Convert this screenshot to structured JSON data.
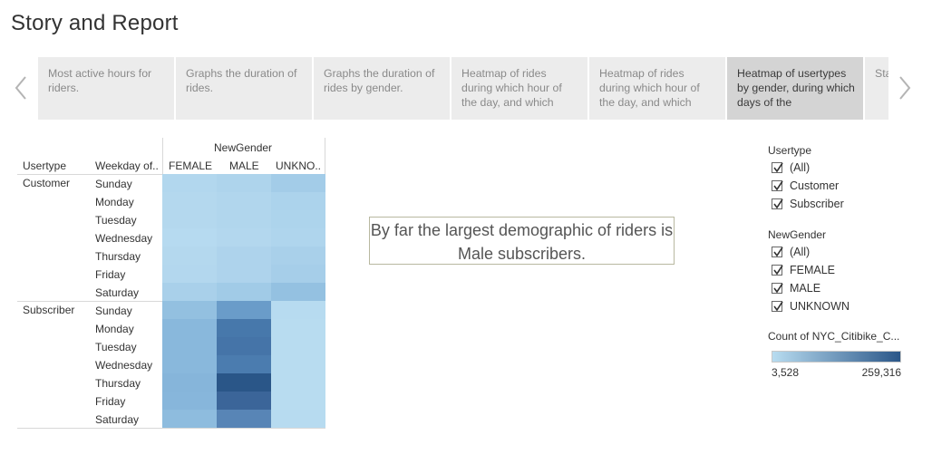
{
  "page": {
    "title": "Story and Report"
  },
  "story": {
    "points": [
      {
        "text": "Most active hours for riders.",
        "active": false
      },
      {
        "text": "Graphs the duration of rides.",
        "active": false
      },
      {
        "text": "Graphs the duration of rides by gender.",
        "active": false
      },
      {
        "text": "Heatmap of rides during which hour of the day, and which",
        "active": false
      },
      {
        "text": "Heatmap of rides during which hour of the day, and which",
        "active": false
      },
      {
        "text": "Heatmap of usertypes by gender, during which days of the",
        "active": true
      },
      {
        "text": "Sta rid",
        "active": false
      }
    ],
    "prev_icon": "chevron-left-icon",
    "next_icon": "chevron-right-icon"
  },
  "heatmap": {
    "column_group_label": "NewGender",
    "row_header_1": "Usertype",
    "row_header_2": "Weekday of..",
    "columns": [
      "FEMALE",
      "MALE",
      "UNKNO.."
    ],
    "groups": [
      {
        "label": "Customer",
        "days": [
          "Sunday",
          "Monday",
          "Tuesday",
          "Wednesday",
          "Thursday",
          "Friday",
          "Saturday"
        ],
        "colors": [
          [
            "#b2d7ee",
            "#aed4ec",
            "#a3cce8"
          ],
          [
            "#b4d8ee",
            "#b1d6ed",
            "#acd3ec"
          ],
          [
            "#b4d8ee",
            "#b1d6ed",
            "#add4ec"
          ],
          [
            "#b6daf0",
            "#b3d7ee",
            "#afd5ed"
          ],
          [
            "#b4d8ee",
            "#aed3ec",
            "#a9d0ea"
          ],
          [
            "#b3d7ee",
            "#aed3ec",
            "#a6cee9"
          ],
          [
            "#a9d0ea",
            "#a1cbe7",
            "#94c1e1"
          ]
        ]
      },
      {
        "label": "Subscriber",
        "days": [
          "Sunday",
          "Monday",
          "Tuesday",
          "Wednesday",
          "Thursday",
          "Friday",
          "Saturday"
        ],
        "colors": [
          [
            "#93c0e0",
            "#6a9cc9",
            "#b7dbf0"
          ],
          [
            "#89b8dc",
            "#4778ab",
            "#b8dcf0"
          ],
          [
            "#89b8dc",
            "#4574a8",
            "#b8dcf0"
          ],
          [
            "#89b8dc",
            "#4b7caf",
            "#b8dcf0"
          ],
          [
            "#86b5da",
            "#2a5688",
            "#b8dcf0"
          ],
          [
            "#87b6db",
            "#3b6599",
            "#b8dcf0"
          ],
          [
            "#8ebcde",
            "#5885b6",
            "#b7dbf0"
          ]
        ]
      }
    ]
  },
  "annotation": {
    "text": "By far the largest demographic of riders is Male subscribers."
  },
  "filters": {
    "usertype": {
      "title": "Usertype",
      "items": [
        {
          "label": "(All)",
          "checked": true
        },
        {
          "label": "Customer",
          "checked": true
        },
        {
          "label": "Subscriber",
          "checked": true
        }
      ]
    },
    "gender": {
      "title": "NewGender",
      "items": [
        {
          "label": "(All)",
          "checked": true
        },
        {
          "label": "FEMALE",
          "checked": true
        },
        {
          "label": "MALE",
          "checked": true
        },
        {
          "label": "UNKNOWN",
          "checked": true
        }
      ]
    }
  },
  "legend": {
    "title": "Count of NYC_Citibike_C...",
    "min_label": "3,528",
    "max_label": "259,316",
    "color_low": "#b8dcf0",
    "color_high": "#2a5688"
  }
}
